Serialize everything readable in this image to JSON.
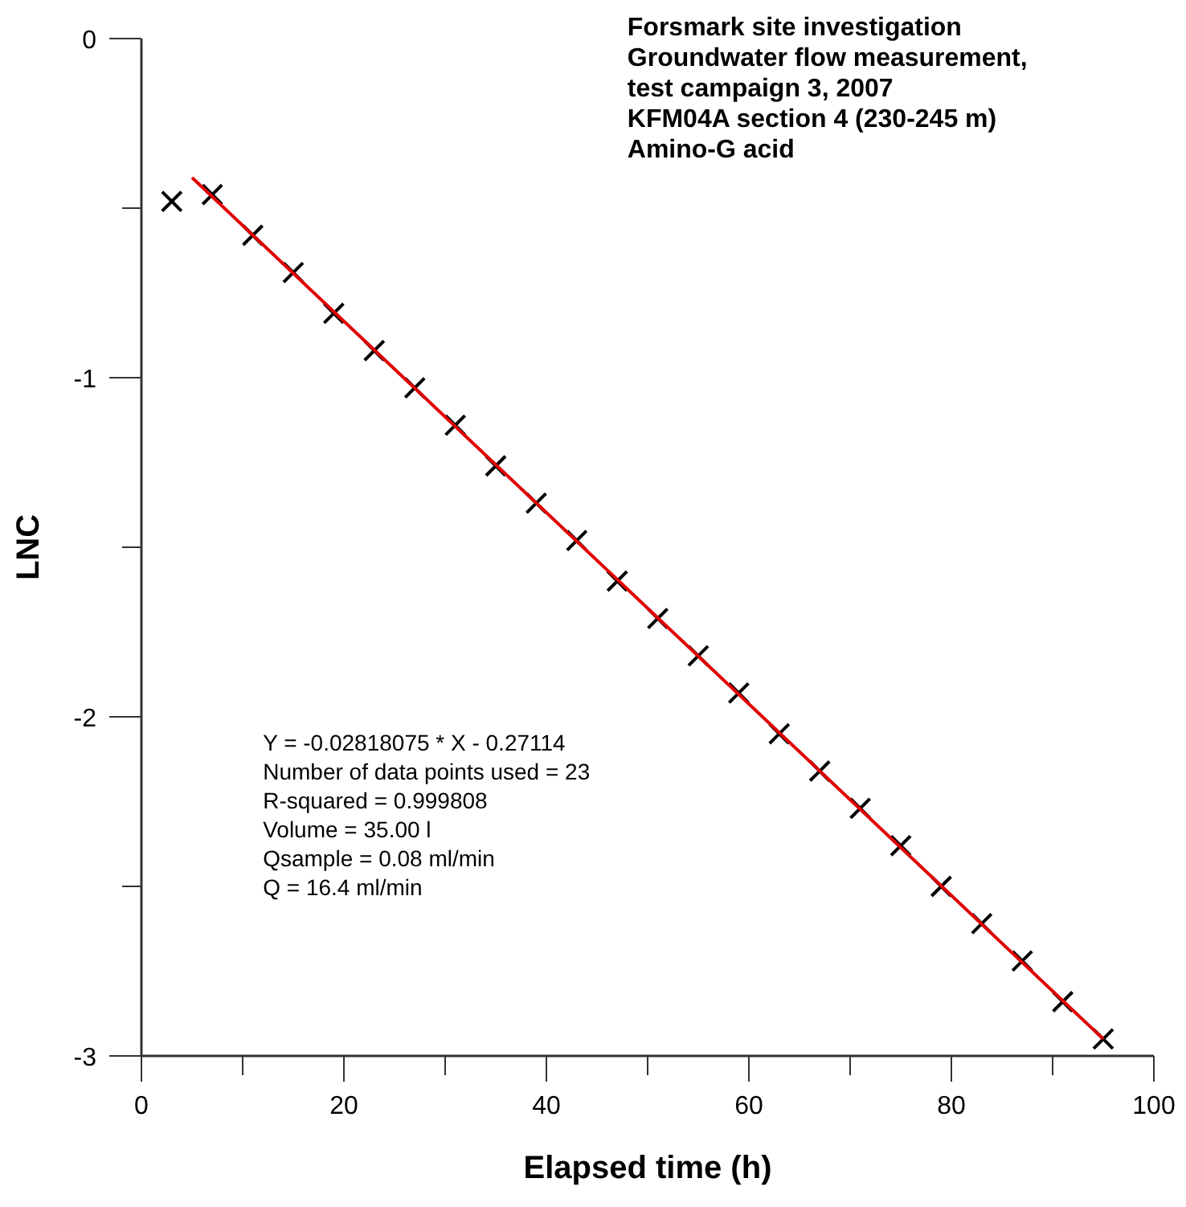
{
  "chart_data": {
    "type": "scatter",
    "title": "Forsmark site investigation\nGroundwater flow measurement,\ntest campaign 3, 2007\nKFM04A section 4 (230-245 m)\nAmino-G acid",
    "xlabel": "Elapsed time (h)",
    "ylabel": "LNC",
    "annotations": [
      "Y = -0.02818075 * X - 0.27114\nNumber of data points used = 23\nR-squared = 0.999808\nVolume = 35.00 l\nQsample = 0.08 ml/min\nQ = 16.4 ml/min"
    ],
    "xlim": [
      0,
      100
    ],
    "ylim": [
      -3,
      0
    ],
    "xticks": [
      0,
      {
        "value": 10,
        "label": null
      },
      20,
      {
        "value": 30,
        "label": null
      },
      40,
      {
        "value": 50,
        "label": null
      },
      60,
      {
        "value": 70,
        "label": null
      },
      80,
      {
        "value": 90,
        "label": null
      },
      100
    ],
    "yticks": [
      -3,
      {
        "value": -2.5,
        "label": null
      },
      -2,
      {
        "value": -1.5,
        "label": null
      },
      -1,
      {
        "value": -0.5,
        "label": null
      },
      0
    ],
    "grid": false,
    "series": [
      {
        "color": "#000000",
        "marker": "cross",
        "x": [
          3,
          7,
          11,
          15,
          19,
          23,
          27,
          31,
          35,
          39,
          43,
          47,
          51,
          55,
          59,
          63,
          67,
          71,
          75,
          79,
          83,
          87,
          91,
          95
        ],
        "values": [
          -0.48,
          -0.46,
          -0.58,
          -0.69,
          -0.81,
          -0.92,
          -1.03,
          -1.14,
          -1.26,
          -1.37,
          -1.48,
          -1.6,
          -1.71,
          -1.82,
          -1.93,
          -2.05,
          -2.16,
          -2.27,
          -2.38,
          -2.5,
          -2.61,
          -2.72,
          -2.84,
          -2.95
        ]
      },
      {
        "type": "line",
        "color": "#e00000",
        "marker": "none",
        "line_style": "solid",
        "x": [
          5,
          95
        ],
        "values": [
          -0.41,
          -2.95
        ]
      }
    ]
  }
}
